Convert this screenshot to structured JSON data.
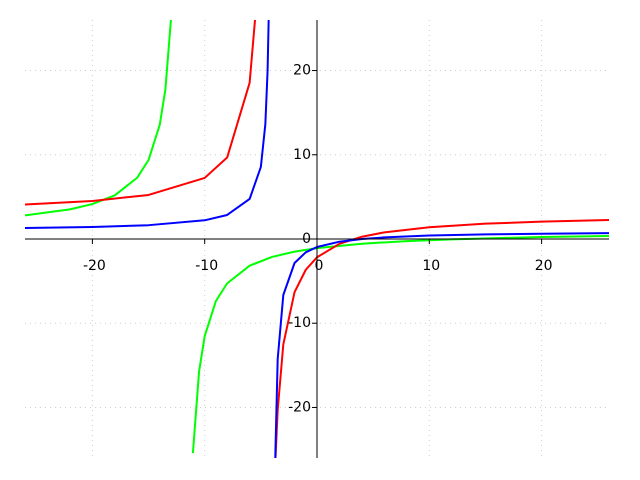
{
  "chart_data": {
    "type": "line",
    "xlim": [
      -26,
      26
    ],
    "ylim": [
      -26,
      26
    ],
    "xticks": [
      -20,
      -10,
      0,
      10,
      20
    ],
    "yticks": [
      -20,
      -10,
      0,
      10,
      20
    ],
    "grid": true,
    "series": [
      {
        "color": "#00ff00",
        "x": [
          -26,
          -22,
          -20,
          -18,
          -16,
          -15,
          -14,
          -13.5,
          -13,
          null,
          -11.05,
          -10.5,
          -10,
          -9,
          -8,
          -6,
          -4,
          -2,
          0,
          4,
          8,
          12,
          16,
          20,
          26
        ],
        "values": [
          2.8,
          3.52,
          4.15,
          5.19,
          7.29,
          9.38,
          13.56,
          17.74,
          26.11,
          null,
          -25.41,
          -15.72,
          -11.54,
          -7.36,
          -5.27,
          -3.17,
          -2.13,
          -1.5,
          -1.08,
          -0.56,
          -0.25,
          -0.04,
          0.11,
          0.23,
          0.35
        ]
      },
      {
        "color": "#ff0000",
        "x": [
          -26,
          -20,
          -15,
          -10,
          -8,
          -6,
          -5.5,
          null,
          -3.7,
          -3.5,
          -3,
          -2,
          -1,
          0,
          2,
          4,
          6,
          10,
          15,
          20,
          26
        ],
        "values": [
          4.09,
          4.51,
          5.23,
          7.25,
          9.67,
          18.54,
          26.31,
          null,
          -26.11,
          -20.29,
          -12.52,
          -6.31,
          -3.65,
          -2.17,
          -0.57,
          0.27,
          0.79,
          1.4,
          1.82,
          2.06,
          2.25
        ]
      },
      {
        "color": "#0000ff",
        "x": [
          -26,
          -20,
          -15,
          -10,
          -8,
          -6,
          -5,
          -4.6,
          -4.4,
          -4.3,
          null,
          -3.72,
          -3.5,
          -3,
          -2,
          -1,
          0,
          2,
          4,
          6,
          10,
          15,
          20,
          26
        ],
        "values": [
          1.3,
          1.43,
          1.64,
          2.22,
          2.85,
          4.75,
          8.55,
          13.62,
          19.95,
          26.28,
          null,
          -26.19,
          -14.25,
          -6.65,
          -2.85,
          -1.58,
          -0.95,
          -0.32,
          0,
          0.19,
          0.41,
          0.55,
          0.63,
          0.7
        ]
      }
    ]
  }
}
